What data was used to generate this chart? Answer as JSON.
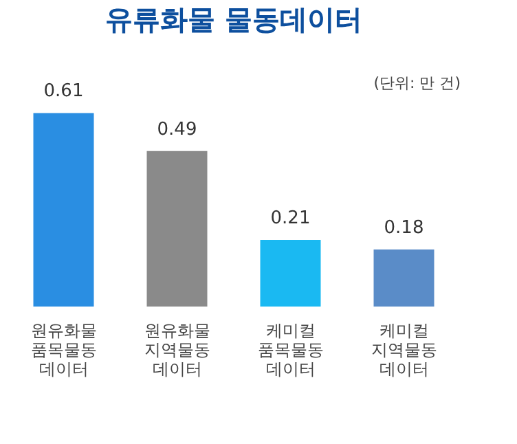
{
  "chart_data": {
    "type": "bar",
    "title": "유류화물 물동데이터",
    "annotations": [
      "(단위: 만 건)"
    ],
    "categories": [
      "원유화물 품목물동 데이터",
      "원유화물 지역물동 데이터",
      "케미컬 품목물동 데이터",
      "케미컬 지역물동 데이터"
    ],
    "values": [
      0.61,
      0.49,
      0.21,
      0.18
    ],
    "colors": [
      "#2a8ee2",
      "#8a8a8a",
      "#1ab9f2",
      "#5a8cc8"
    ],
    "data_labels": true
  }
}
